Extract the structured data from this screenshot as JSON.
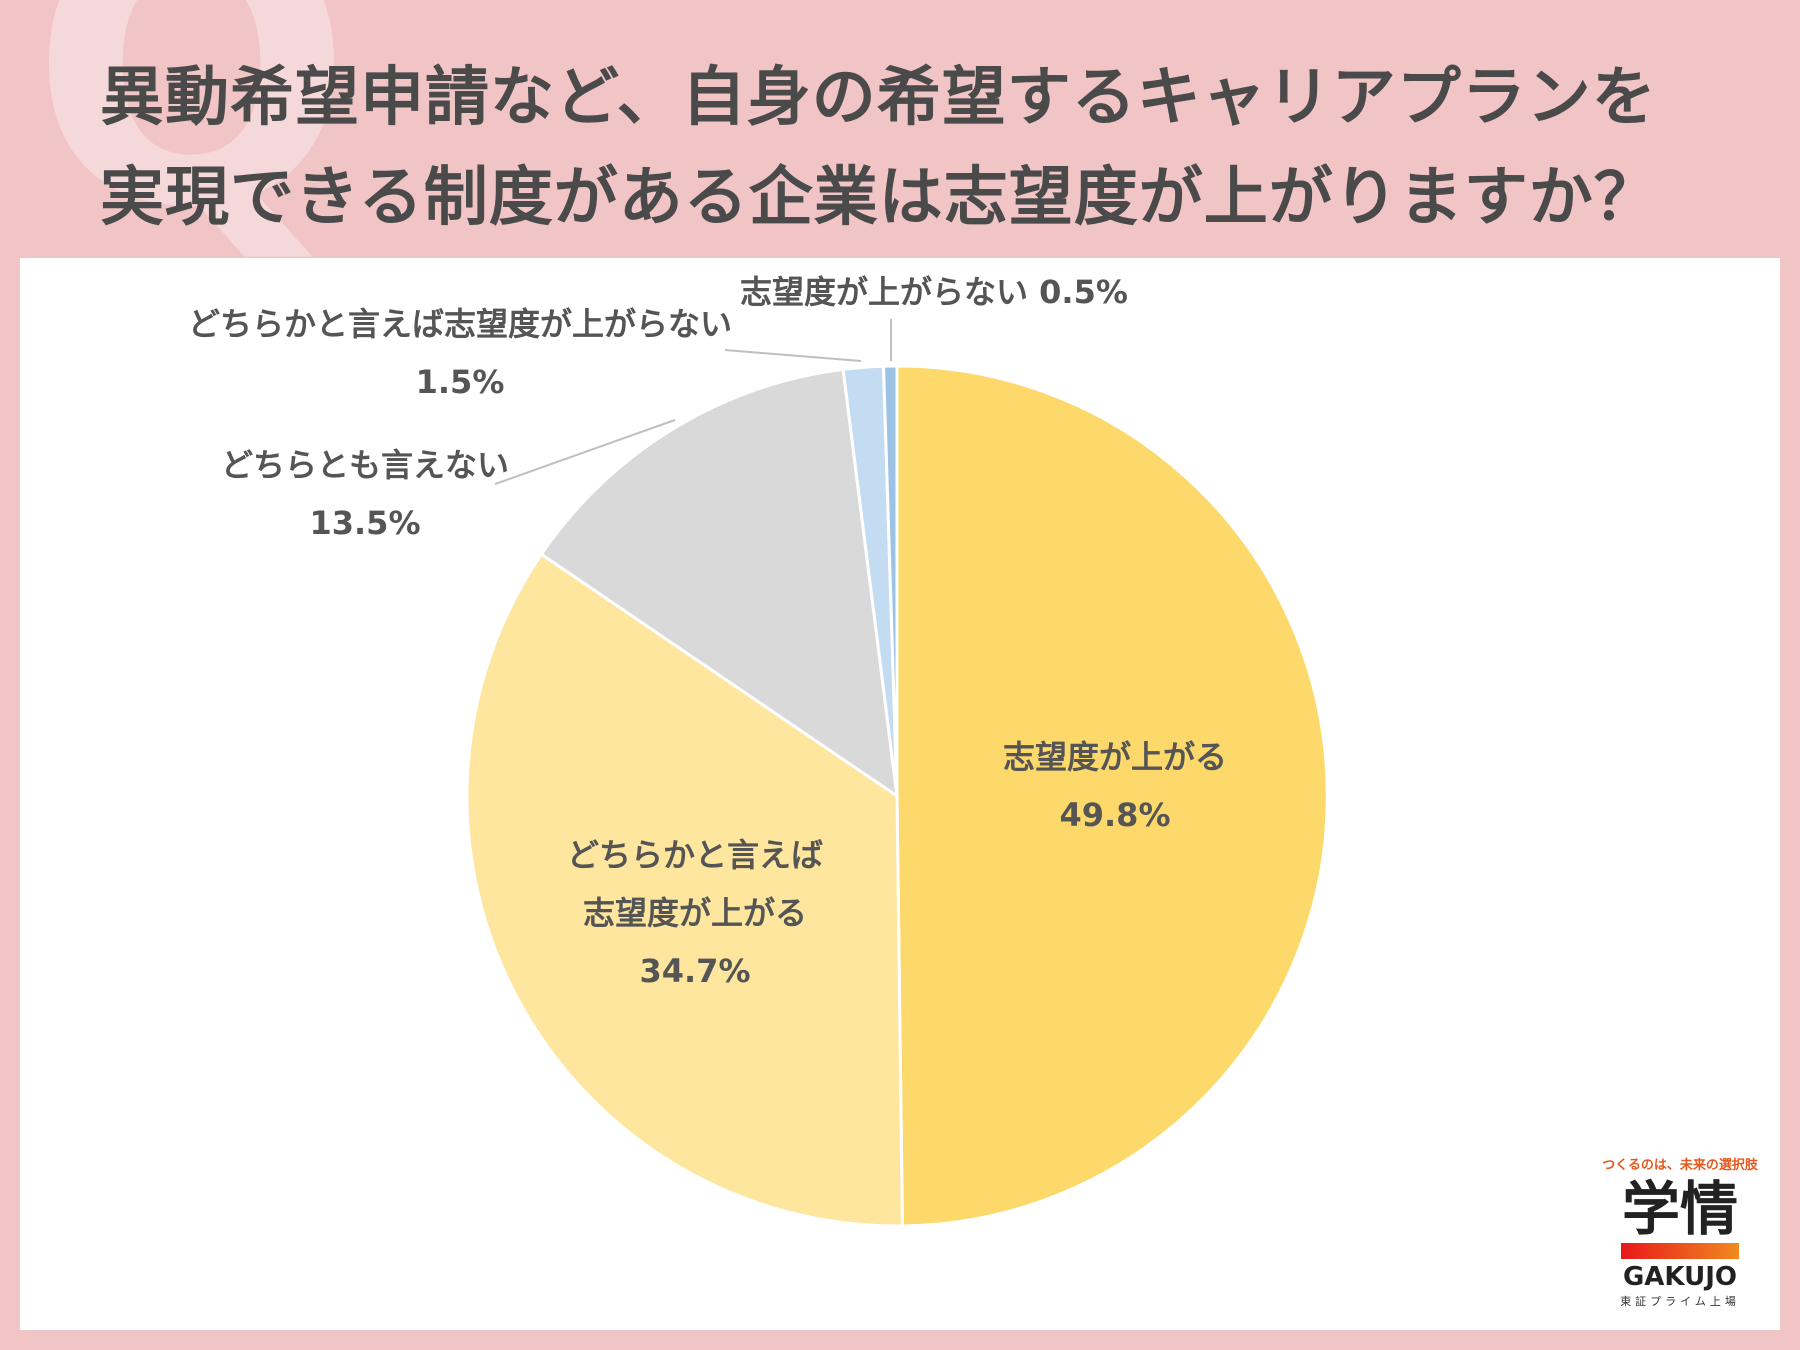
{
  "header": {
    "title_line1": "異動希望申請など、自身の希望するキャリアプランを",
    "title_line2": "実現できる制度がある企業は志望度が上がりますか？"
  },
  "chart_data": {
    "type": "pie",
    "slices": [
      {
        "label_lines": [
          "志望度が上がる"
        ],
        "value": 49.8,
        "value_text": "49.8%",
        "color": "#fdd96b"
      },
      {
        "label_lines": [
          "どちらかと言えば",
          "志望度が上がる"
        ],
        "value": 34.7,
        "value_text": "34.7%",
        "color": "#fee69e"
      },
      {
        "label_lines": [
          "どちらとも言えない"
        ],
        "value": 13.5,
        "value_text": "13.5%",
        "color": "#d9d9d9"
      },
      {
        "label_lines": [
          "どちらかと言えば志望度が上がらない"
        ],
        "value": 1.5,
        "value_text": "1.5%",
        "color": "#c4dcf1"
      },
      {
        "label_lines": [
          "志望度が上がらない"
        ],
        "value": 0.5,
        "value_text": "0.5%",
        "color": "#9cc3e6"
      }
    ]
  },
  "logo": {
    "tagline": "つくるのは、未来の選択肢",
    "kanji": "学情",
    "name": "GAKUJO",
    "sub": "東証プライム上場"
  }
}
